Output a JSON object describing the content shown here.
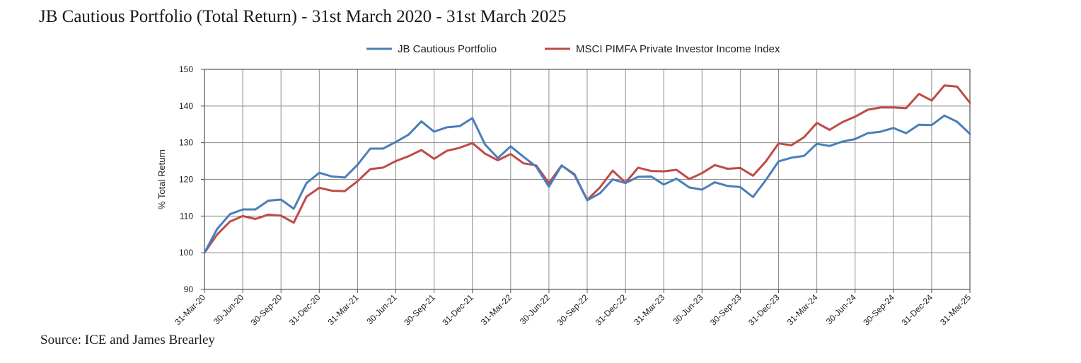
{
  "title": "JB Cautious Portfolio (Total Return) - 31st March 2020 - 31st March 2025",
  "source": "Source: ICE and James Brearley",
  "chart_data": {
    "type": "line",
    "ylabel": "% Total Return",
    "xlabel": "",
    "ylim": [
      90,
      150
    ],
    "yticks": [
      90,
      100,
      110,
      120,
      130,
      140,
      150
    ],
    "grid": true,
    "legend_position": "top",
    "x_tick_labels": [
      "31-Mar-20",
      "30-Jun-20",
      "30-Sep-20",
      "31-Dec-20",
      "31-Mar-21",
      "30-Jun-21",
      "30-Sep-21",
      "31-Dec-21",
      "31-Mar-22",
      "30-Jun-22",
      "30-Sep-22",
      "31-Dec-22",
      "31-Mar-23",
      "30-Jun-23",
      "30-Sep-23",
      "31-Dec-23",
      "31-Mar-24",
      "30-Jun-24",
      "30-Sep-24",
      "31-Dec-24",
      "31-Mar-25"
    ],
    "series": [
      {
        "name": "JB Cautious Portfolio",
        "color": "#4a7ebb",
        "values": [
          100,
          106.5,
          110.5,
          111.8,
          111.8,
          114.2,
          114.5,
          112,
          119,
          121.8,
          120.8,
          120.5,
          124,
          128.4,
          128.4,
          130.2,
          132.2,
          135.8,
          133,
          134.2,
          134.5,
          136.7,
          129.5,
          125.8,
          129,
          126.2,
          123.5,
          118,
          123.8,
          121.2,
          114.3,
          116.2,
          120,
          119,
          120.7,
          120.8,
          118.6,
          120.2,
          117.8,
          117.2,
          119.2,
          118.2,
          117.9,
          115.2,
          119.8,
          124.9,
          125.9,
          126.4,
          129.7,
          129.1,
          130.3,
          131,
          132.6,
          133,
          134,
          132.6,
          134.9,
          134.8,
          137.4,
          135.7,
          132.4
        ]
      },
      {
        "name": "MSCI PIMFA Private Investor Income Index",
        "color": "#be4b48",
        "values": [
          100,
          105,
          108.5,
          110,
          109.2,
          110.4,
          110.1,
          108.2,
          115.3,
          117.7,
          116.9,
          116.8,
          119.5,
          122.8,
          123.2,
          125,
          126.3,
          128,
          125.6,
          127.8,
          128.6,
          129.9,
          127,
          125.2,
          126.9,
          124.4,
          123.8,
          119,
          123.8,
          121.4,
          114.4,
          117.8,
          122.4,
          119.1,
          123.2,
          122.3,
          122.2,
          122.6,
          120.1,
          121.7,
          123.9,
          122.9,
          123.1,
          121,
          124.9,
          129.8,
          129.3,
          131.5,
          135.4,
          133.5,
          135.6,
          137.1,
          139,
          139.6,
          139.6,
          139.4,
          143.3,
          141.5,
          145.6,
          145.3,
          140.9
        ]
      }
    ]
  }
}
